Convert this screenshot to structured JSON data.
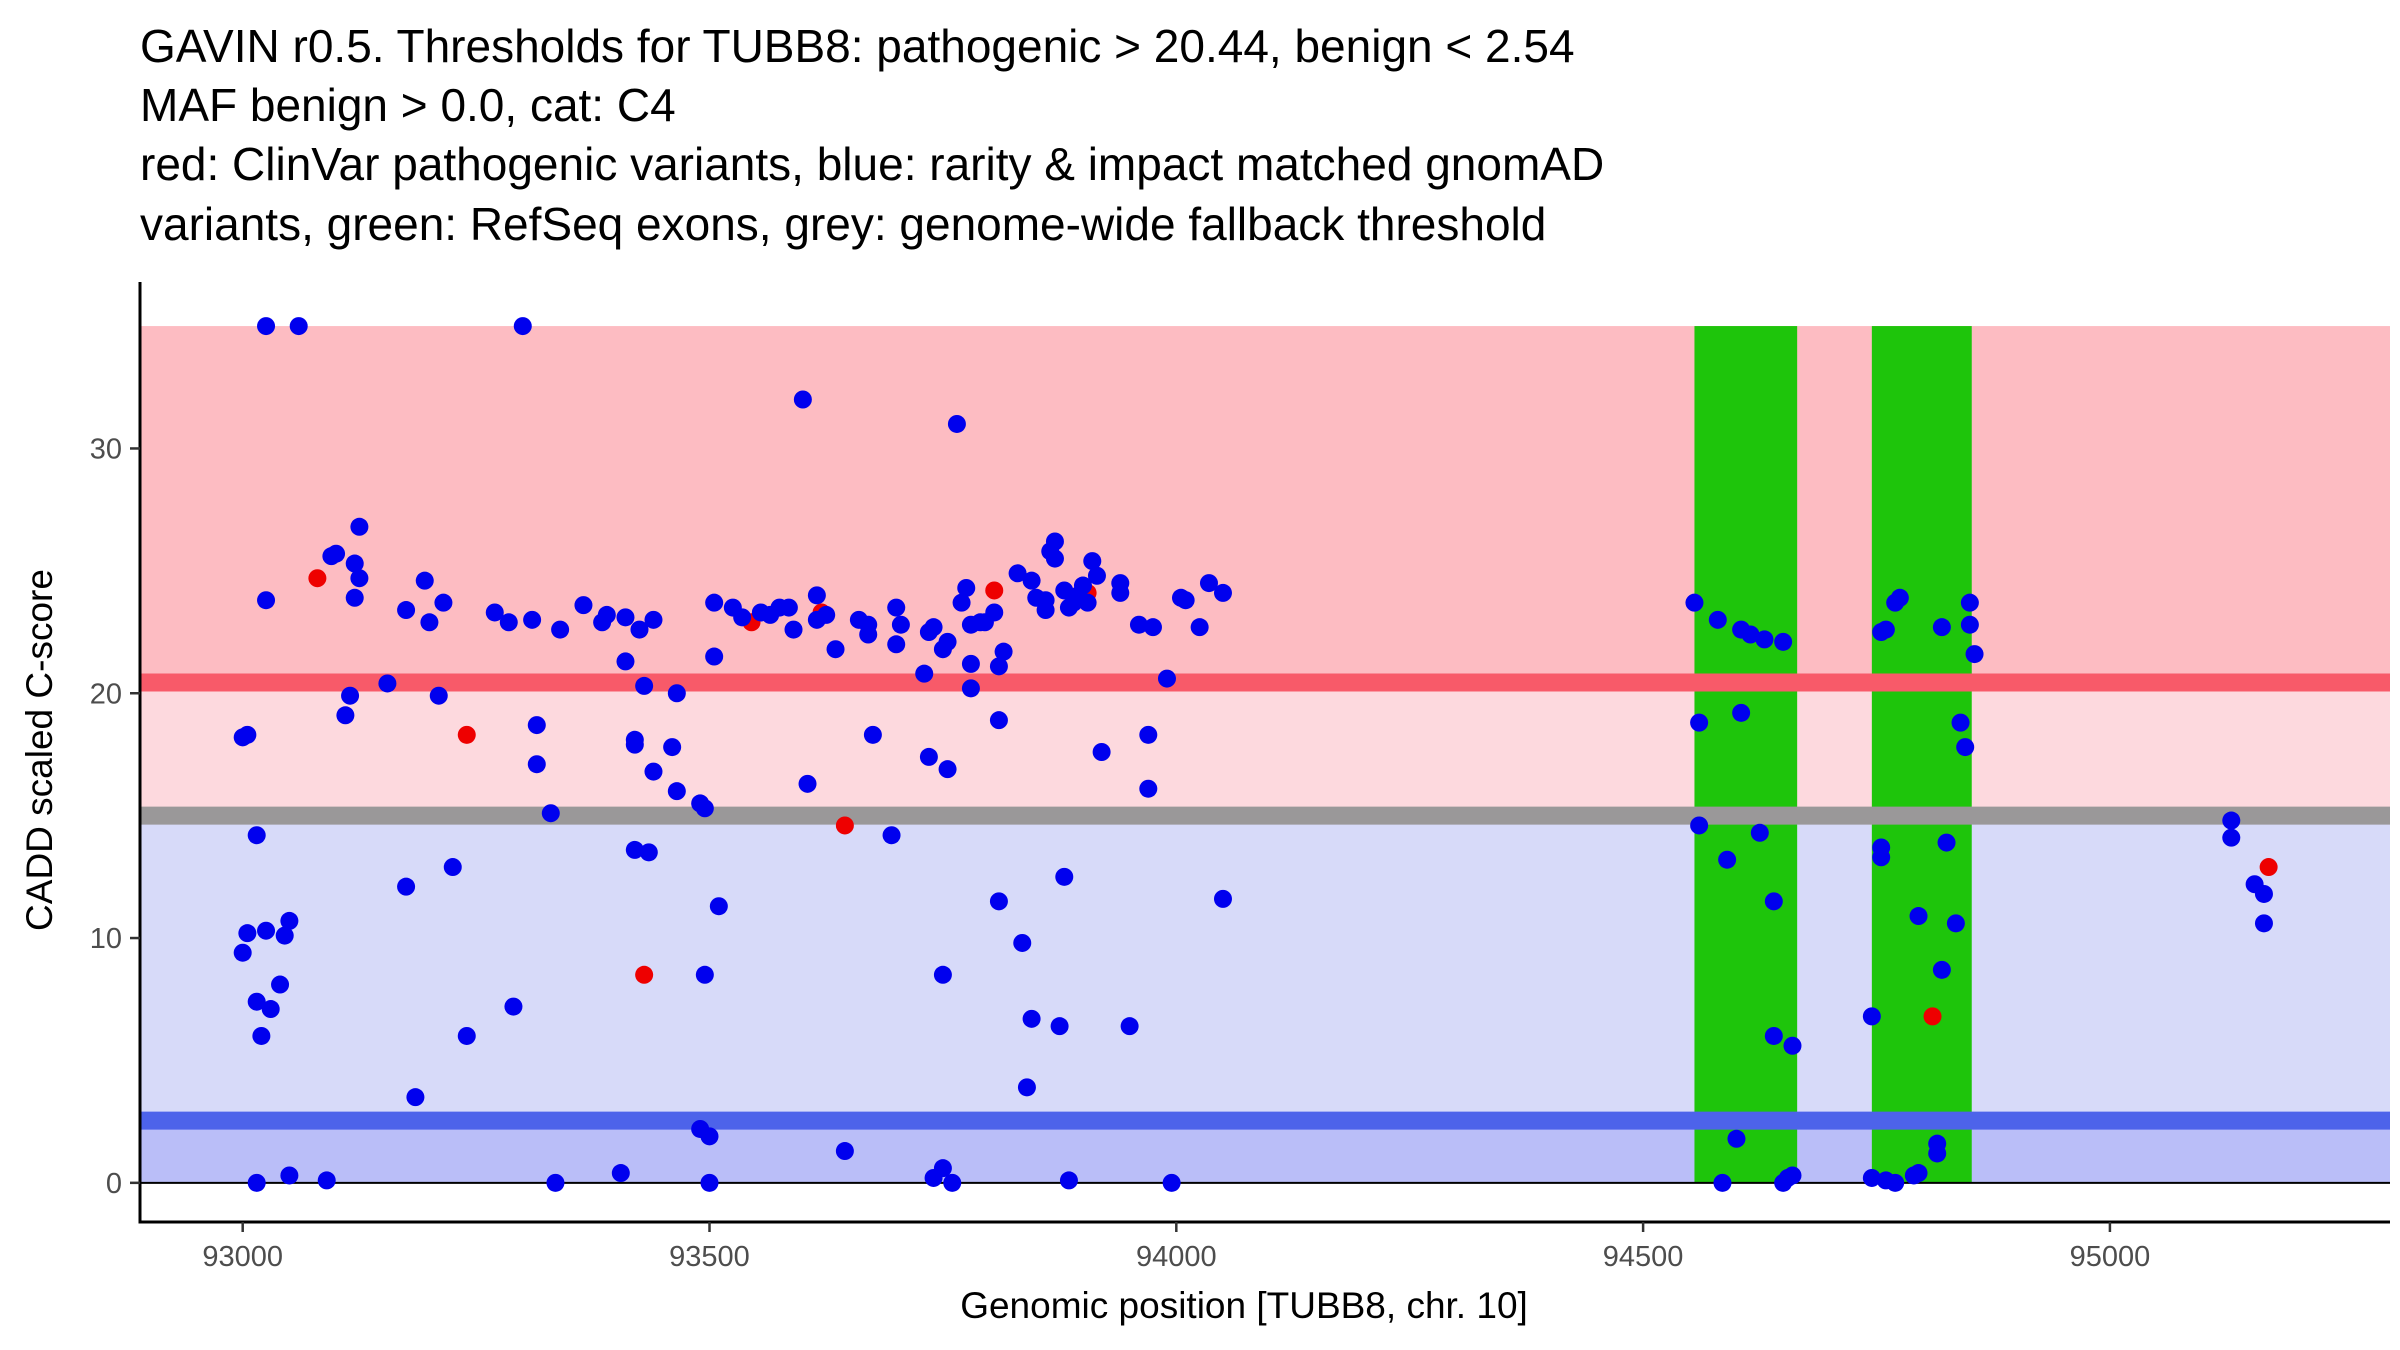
{
  "colors": {
    "pathogenic_region": "#fdbcc2",
    "uncertain_region": "#fdd9de",
    "benign_region": "#d7daf9",
    "low_benign_region": "#babef8",
    "pathogenic_line": "#f85a69",
    "benign_line": "#4d63ea",
    "fallback_line": "#9a9899",
    "exon": "#1ec50b",
    "clinvar_point": "#ee0000",
    "gnomad_point": "#0000ee"
  },
  "chart_data": {
    "type": "scatter",
    "title_lines": [
      "GAVIN r0.5. Thresholds for TUBB8: pathogenic > 20.44, benign < 2.54",
      "MAF benign > 0.0, cat: C4",
      "red: ClinVar pathogenic variants, blue: rarity & impact matched gnomAD",
      "variants, green: RefSeq exons, grey: genome-wide fallback threshold"
    ],
    "xlabel": "Genomic position [TUBB8, chr. 10]",
    "ylabel": "CADD scaled C-score",
    "xlim": [
      92890,
      95300
    ],
    "ylim": [
      -1.6,
      36.8
    ],
    "xticks": [
      93000,
      93500,
      94000,
      94500,
      95000
    ],
    "yticks": [
      0,
      10,
      20,
      30
    ],
    "regions": [
      {
        "name": "pathogenic",
        "y0": 20.44,
        "y1": 35,
        "x0": 92890,
        "x1": 95300,
        "color_key": "pathogenic_region"
      },
      {
        "name": "uncertain",
        "y0": 15.0,
        "y1": 20.44,
        "x0": 92890,
        "x1": 95300,
        "color_key": "uncertain_region"
      },
      {
        "name": "benign",
        "y0": 2.54,
        "y1": 15.0,
        "x0": 92890,
        "x1": 95300,
        "color_key": "benign_region"
      },
      {
        "name": "low-benign",
        "y0": 0,
        "y1": 2.54,
        "x0": 92890,
        "x1": 95300,
        "color_key": "low_benign_region"
      }
    ],
    "threshold_lines": [
      {
        "name": "pathogenic-threshold",
        "y": 20.44,
        "color_key": "pathogenic_line"
      },
      {
        "name": "fallback-threshold",
        "y": 15.0,
        "color_key": "fallback_line"
      },
      {
        "name": "benign-threshold",
        "y": 2.54,
        "color_key": "benign_line"
      }
    ],
    "exons": [
      {
        "x0": 94555,
        "x1": 94665,
        "y0": 0,
        "y1": 35
      },
      {
        "x0": 94745,
        "x1": 94852,
        "y0": 0,
        "y1": 35
      }
    ],
    "series": [
      {
        "name": "ClinVar pathogenic",
        "color_key": "clinvar_point",
        "points": [
          [
            93080,
            24.7
          ],
          [
            93240,
            18.3
          ],
          [
            93430,
            8.5
          ],
          [
            93545,
            22.9
          ],
          [
            93620,
            23.3
          ],
          [
            93645,
            14.6
          ],
          [
            93805,
            24.2
          ],
          [
            93905,
            24.1
          ],
          [
            94810,
            6.8
          ],
          [
            95170,
            12.9
          ]
        ]
      },
      {
        "name": "gnomAD matched",
        "color_key": "gnomad_point",
        "points": [
          [
            93025,
            35.0
          ],
          [
            93060,
            35.0
          ],
          [
            93300,
            35.0
          ],
          [
            93600,
            32.0
          ],
          [
            93765,
            31.0
          ],
          [
            93000,
            18.2
          ],
          [
            93005,
            18.3
          ],
          [
            93015,
            14.2
          ],
          [
            93005,
            10.2
          ],
          [
            93000,
            9.4
          ],
          [
            93025,
            10.3
          ],
          [
            93045,
            10.1
          ],
          [
            93050,
            10.7
          ],
          [
            93015,
            7.4
          ],
          [
            93020,
            6.0
          ],
          [
            93030,
            7.1
          ],
          [
            93040,
            8.1
          ],
          [
            93025,
            23.8
          ],
          [
            93015,
            0.0
          ],
          [
            93050,
            0.3
          ],
          [
            93090,
            0.1
          ],
          [
            93095,
            25.6
          ],
          [
            93100,
            25.7
          ],
          [
            93125,
            26.8
          ],
          [
            93120,
            25.3
          ],
          [
            93125,
            24.7
          ],
          [
            93120,
            23.9
          ],
          [
            93115,
            19.9
          ],
          [
            93110,
            19.1
          ],
          [
            93155,
            20.4
          ],
          [
            93175,
            23.4
          ],
          [
            93175,
            12.1
          ],
          [
            93185,
            3.5
          ],
          [
            93195,
            24.6
          ],
          [
            93200,
            22.9
          ],
          [
            93210,
            19.9
          ],
          [
            93215,
            23.7
          ],
          [
            93225,
            12.9
          ],
          [
            93240,
            6.0
          ],
          [
            93270,
            23.3
          ],
          [
            93285,
            22.9
          ],
          [
            93290,
            7.2
          ],
          [
            93310,
            23.0
          ],
          [
            93315,
            18.7
          ],
          [
            93315,
            17.1
          ],
          [
            93330,
            15.1
          ],
          [
            93340,
            22.6
          ],
          [
            93335,
            0.0
          ],
          [
            93365,
            23.6
          ],
          [
            93385,
            22.9
          ],
          [
            93390,
            23.2
          ],
          [
            93405,
            0.4
          ],
          [
            93410,
            21.3
          ],
          [
            93410,
            23.1
          ],
          [
            93420,
            13.6
          ],
          [
            93420,
            17.9
          ],
          [
            93420,
            18.1
          ],
          [
            93425,
            22.6
          ],
          [
            93430,
            20.3
          ],
          [
            93435,
            13.5
          ],
          [
            93440,
            16.8
          ],
          [
            93440,
            23.0
          ],
          [
            93460,
            17.8
          ],
          [
            93465,
            20.0
          ],
          [
            93465,
            16.0
          ],
          [
            93490,
            15.5
          ],
          [
            93495,
            15.3
          ],
          [
            93490,
            2.2
          ],
          [
            93495,
            8.5
          ],
          [
            93500,
            1.9
          ],
          [
            93500,
            0.0
          ],
          [
            93505,
            23.7
          ],
          [
            93505,
            21.5
          ],
          [
            93510,
            11.3
          ],
          [
            93525,
            23.5
          ],
          [
            93535,
            23.1
          ],
          [
            93555,
            23.3
          ],
          [
            93565,
            23.2
          ],
          [
            93575,
            23.5
          ],
          [
            93585,
            23.5
          ],
          [
            93590,
            22.6
          ],
          [
            93605,
            16.3
          ],
          [
            93615,
            24.0
          ],
          [
            93615,
            23.0
          ],
          [
            93625,
            23.2
          ],
          [
            93635,
            21.8
          ],
          [
            93645,
            1.3
          ],
          [
            93660,
            23.0
          ],
          [
            93670,
            22.4
          ],
          [
            93675,
            18.3
          ],
          [
            93670,
            22.8
          ],
          [
            93695,
            14.2
          ],
          [
            93700,
            23.5
          ],
          [
            93700,
            22.0
          ],
          [
            93705,
            22.8
          ],
          [
            93730,
            20.8
          ],
          [
            93735,
            22.5
          ],
          [
            93735,
            17.4
          ],
          [
            93740,
            0.2
          ],
          [
            93740,
            22.7
          ],
          [
            93750,
            0.6
          ],
          [
            93750,
            8.5
          ],
          [
            93755,
            16.9
          ],
          [
            93750,
            21.8
          ],
          [
            93755,
            22.1
          ],
          [
            93760,
            0.0
          ],
          [
            93770,
            23.7
          ],
          [
            93775,
            24.3
          ],
          [
            93780,
            21.2
          ],
          [
            93780,
            20.2
          ],
          [
            93780,
            22.8
          ],
          [
            93790,
            22.9
          ],
          [
            93795,
            22.9
          ],
          [
            93805,
            23.3
          ],
          [
            93810,
            21.1
          ],
          [
            93815,
            21.7
          ],
          [
            93810,
            18.9
          ],
          [
            93810,
            11.5
          ],
          [
            93830,
            24.9
          ],
          [
            93835,
            9.8
          ],
          [
            93840,
            3.9
          ],
          [
            93845,
            6.7
          ],
          [
            93845,
            24.6
          ],
          [
            93850,
            23.9
          ],
          [
            93860,
            23.8
          ],
          [
            93860,
            23.4
          ],
          [
            93865,
            25.8
          ],
          [
            93870,
            26.2
          ],
          [
            93870,
            25.5
          ],
          [
            93875,
            6.4
          ],
          [
            93880,
            12.5
          ],
          [
            93880,
            24.2
          ],
          [
            93885,
            23.5
          ],
          [
            93885,
            0.1
          ],
          [
            93890,
            23.7
          ],
          [
            93895,
            24.0
          ],
          [
            93900,
            24.4
          ],
          [
            93905,
            23.7
          ],
          [
            93910,
            25.4
          ],
          [
            93915,
            24.8
          ],
          [
            93920,
            17.6
          ],
          [
            93940,
            24.5
          ],
          [
            93940,
            24.1
          ],
          [
            93950,
            6.4
          ],
          [
            93960,
            22.8
          ],
          [
            93970,
            18.3
          ],
          [
            93970,
            16.1
          ],
          [
            93975,
            22.7
          ],
          [
            93990,
            20.6
          ],
          [
            93995,
            0.0
          ],
          [
            94005,
            23.9
          ],
          [
            94010,
            23.8
          ],
          [
            94025,
            22.7
          ],
          [
            94035,
            24.5
          ],
          [
            94050,
            24.1
          ],
          [
            94050,
            11.6
          ],
          [
            94555,
            23.7
          ],
          [
            94560,
            18.8
          ],
          [
            94560,
            14.6
          ],
          [
            94580,
            23.0
          ],
          [
            94585,
            0.0
          ],
          [
            94590,
            13.2
          ],
          [
            94600,
            1.8
          ],
          [
            94605,
            22.6
          ],
          [
            94605,
            19.2
          ],
          [
            94615,
            22.4
          ],
          [
            94625,
            14.3
          ],
          [
            94630,
            22.2
          ],
          [
            94640,
            11.5
          ],
          [
            94640,
            6.0
          ],
          [
            94650,
            22.1
          ],
          [
            94650,
            0.0
          ],
          [
            94655,
            0.2
          ],
          [
            94660,
            0.3
          ],
          [
            94660,
            5.6
          ],
          [
            94745,
            0.2
          ],
          [
            94745,
            6.8
          ],
          [
            94755,
            13.7
          ],
          [
            94755,
            13.3
          ],
          [
            94755,
            22.5
          ],
          [
            94760,
            22.6
          ],
          [
            94760,
            0.1
          ],
          [
            94770,
            0.0
          ],
          [
            94770,
            23.7
          ],
          [
            94775,
            23.9
          ],
          [
            94790,
            0.3
          ],
          [
            94795,
            10.9
          ],
          [
            94795,
            0.4
          ],
          [
            94815,
            1.2
          ],
          [
            94815,
            1.6
          ],
          [
            94820,
            22.7
          ],
          [
            94820,
            8.7
          ],
          [
            94825,
            13.9
          ],
          [
            94835,
            10.6
          ],
          [
            94840,
            18.8
          ],
          [
            94845,
            17.8
          ],
          [
            94850,
            23.7
          ],
          [
            94850,
            22.8
          ],
          [
            94855,
            21.6
          ],
          [
            95130,
            14.8
          ],
          [
            95130,
            14.1
          ],
          [
            95155,
            12.2
          ],
          [
            95165,
            10.6
          ],
          [
            95165,
            11.8
          ]
        ]
      }
    ]
  }
}
